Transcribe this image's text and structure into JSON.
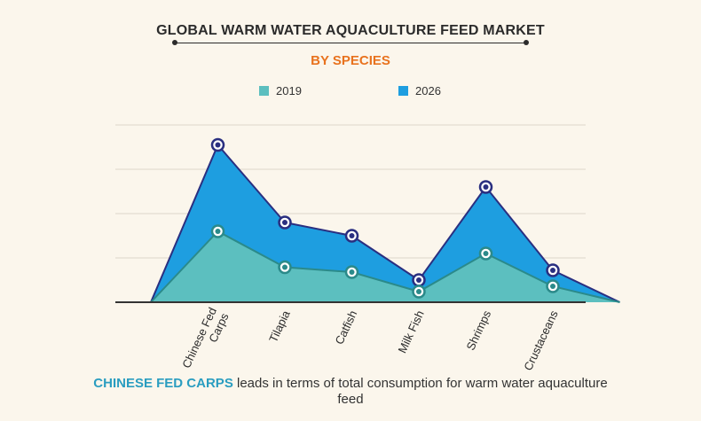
{
  "header": {
    "title": "GLOBAL WARM WATER AQUACULTURE FEED MARKET",
    "subtitle": "BY SPECIES"
  },
  "legend": [
    {
      "label": "2019",
      "color": "#5cbfbf"
    },
    {
      "label": "2026",
      "color": "#1e9ee0"
    }
  ],
  "chart_data": {
    "type": "area",
    "title": "GLOBAL WARM WATER AQUACULTURE FEED MARKET",
    "subtitle": "BY SPECIES",
    "categories": [
      "",
      "Chinese Fed Carps",
      "Tilapia",
      "Catfish",
      "Milk Fish",
      "Shrimps",
      "Crustaceans",
      ""
    ],
    "series": [
      {
        "name": "2019",
        "color": "#5cbfbf",
        "values": [
          0,
          1.6,
          0.79,
          0.68,
          0.24,
          1.1,
          0.36,
          0
        ]
      },
      {
        "name": "2026",
        "color": "#1e9ee0",
        "values": [
          0,
          3.55,
          1.8,
          1.5,
          0.5,
          2.6,
          0.72,
          0
        ]
      }
    ],
    "ylim": [
      0,
      4
    ],
    "grid": true,
    "legend_position": "top",
    "xlabel": "",
    "ylabel": ""
  },
  "footer": {
    "highlight": "CHINESE FED CARPS",
    "text": " leads in terms of total consumption for warm water aquaculture feed"
  }
}
